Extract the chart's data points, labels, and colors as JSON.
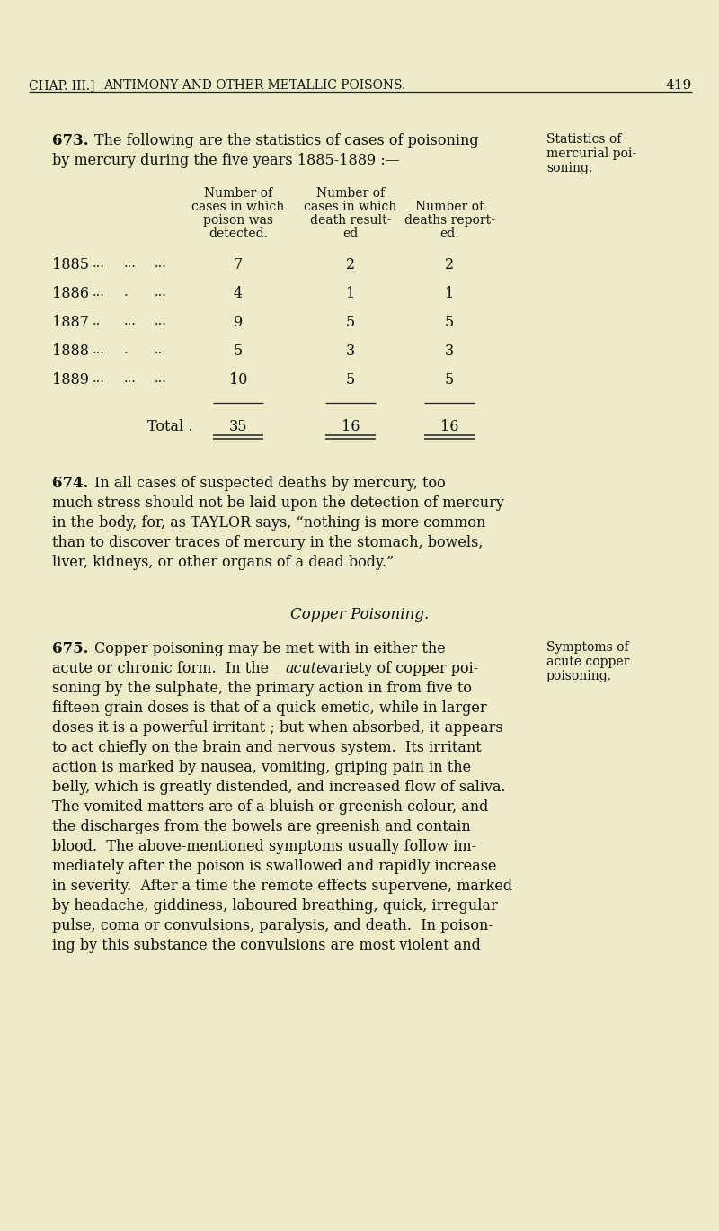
{
  "bg_color": "#edebc8",
  "text_color": "#1a1a1a",
  "page_number": "419",
  "header_left": "CHAP. III.]",
  "header_center": "ANTIMONY AND OTHER METALLIC POISONS.",
  "section_673_bold": "673.",
  "section_673_margin_1": "Statistics of",
  "section_673_margin_2": "mercurial poi-",
  "section_673_margin_3": "soning.",
  "table_col1_header_lines": [
    "Number of",
    "cases in which",
    "poison was",
    "detected."
  ],
  "table_col2_header_lines": [
    "Number of",
    "cases in which",
    "death result-",
    "ed"
  ],
  "table_col3_header_lines": [
    "Number of",
    "deaths report-",
    "ed."
  ],
  "table_years": [
    "1885",
    "1886",
    "1887",
    "1888",
    "1889"
  ],
  "table_col1": [
    7,
    4,
    9,
    5,
    10
  ],
  "table_col2": [
    2,
    1,
    5,
    3,
    5
  ],
  "table_col3": [
    2,
    1,
    5,
    3,
    5
  ],
  "table_total_label": "Total .",
  "table_total_col1": 35,
  "table_total_col2": 16,
  "table_total_col3": 16,
  "section_674_bold": "674.",
  "section_675_bold": "675.",
  "section_675_margin_1": "Symptoms of",
  "section_675_margin_2": "acute copper",
  "section_675_margin_3": "poisoning.",
  "copper_heading": "Copper Poisoning.",
  "lc": "#222222"
}
